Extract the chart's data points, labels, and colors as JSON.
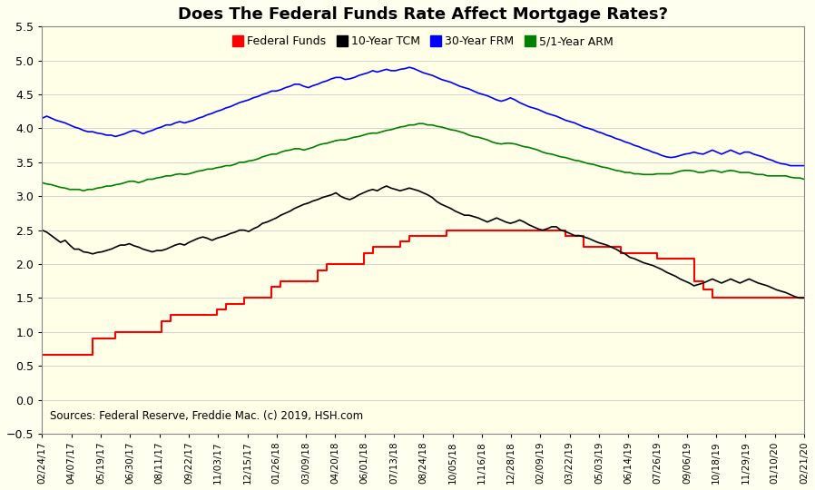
{
  "title": "Does The Federal Funds Rate Affect Mortgage Rates?",
  "background_color": "#FFFFF0",
  "plot_bg_color": "#FFFFE8",
  "source_text": "Sources: Federal Reserve, Freddie Mac. (c) 2019, HSH.com",
  "legend_labels": [
    "Federal Funds",
    "10-Year TCM",
    "30-Year FRM",
    "5/1-Year ARM"
  ],
  "legend_colors": [
    "#FF0000",
    "#000000",
    "#0000FF",
    "#008000"
  ],
  "ylim": [
    -0.5,
    5.5
  ],
  "yticks": [
    -0.5,
    0.0,
    0.5,
    1.0,
    1.5,
    2.0,
    2.5,
    3.0,
    3.5,
    4.0,
    4.5,
    5.0,
    5.5
  ],
  "x_tick_labels": [
    "02/24/17",
    "04/07/17",
    "05/19/17",
    "06/30/17",
    "08/11/17",
    "09/22/17",
    "11/03/17",
    "12/15/17",
    "01/26/18",
    "03/09/18",
    "04/20/18",
    "06/01/18",
    "07/13/18",
    "08/24/18",
    "10/05/18",
    "11/16/18",
    "12/28/18",
    "02/09/19",
    "03/22/19",
    "05/03/19",
    "06/14/19",
    "07/26/19",
    "09/06/19",
    "10/18/19",
    "11/29/19",
    "01/10/20",
    "02/21/20"
  ],
  "federal_funds": [
    0.66,
    0.66,
    0.66,
    0.66,
    0.66,
    0.66,
    0.66,
    0.66,
    0.66,
    0.66,
    0.66,
    0.91,
    0.91,
    0.91,
    0.91,
    0.91,
    1.0,
    1.0,
    1.0,
    1.0,
    1.0,
    1.0,
    1.0,
    1.0,
    1.0,
    1.0,
    1.16,
    1.16,
    1.25,
    1.25,
    1.25,
    1.25,
    1.25,
    1.25,
    1.25,
    1.25,
    1.25,
    1.25,
    1.33,
    1.33,
    1.41,
    1.41,
    1.41,
    1.41,
    1.5,
    1.5,
    1.5,
    1.5,
    1.5,
    1.5,
    1.66,
    1.66,
    1.75,
    1.75,
    1.75,
    1.75,
    1.75,
    1.75,
    1.75,
    1.75,
    1.91,
    1.91,
    2.0,
    2.0,
    2.0,
    2.0,
    2.0,
    2.0,
    2.0,
    2.0,
    2.16,
    2.16,
    2.25,
    2.25,
    2.25,
    2.25,
    2.25,
    2.25,
    2.33,
    2.33,
    2.41,
    2.41,
    2.41,
    2.41,
    2.41,
    2.41,
    2.41,
    2.41,
    2.5,
    2.5,
    2.5,
    2.5,
    2.5,
    2.5,
    2.5,
    2.5,
    2.5,
    2.5,
    2.5,
    2.5,
    2.5,
    2.5,
    2.5,
    2.5,
    2.5,
    2.5,
    2.5,
    2.5,
    2.5,
    2.5,
    2.5,
    2.5,
    2.5,
    2.5,
    2.41,
    2.41,
    2.41,
    2.41,
    2.25,
    2.25,
    2.25,
    2.25,
    2.25,
    2.25,
    2.25,
    2.25,
    2.16,
    2.16,
    2.16,
    2.16,
    2.16,
    2.16,
    2.16,
    2.16,
    2.08,
    2.08,
    2.08,
    2.08,
    2.08,
    2.08,
    2.08,
    2.08,
    1.75,
    1.75,
    1.625,
    1.625,
    1.5,
    1.5,
    1.5,
    1.5,
    1.5,
    1.5,
    1.5,
    1.5,
    1.5,
    1.5,
    1.5,
    1.5,
    1.5,
    1.5,
    1.5,
    1.5,
    1.5,
    1.5,
    1.5,
    1.5,
    1.5
  ],
  "tcm_10yr": [
    2.5,
    2.47,
    2.42,
    2.37,
    2.32,
    2.35,
    2.28,
    2.22,
    2.22,
    2.18,
    2.17,
    2.15,
    2.17,
    2.18,
    2.2,
    2.22,
    2.25,
    2.28,
    2.28,
    2.3,
    2.27,
    2.25,
    2.22,
    2.2,
    2.18,
    2.2,
    2.2,
    2.22,
    2.25,
    2.28,
    2.3,
    2.28,
    2.32,
    2.35,
    2.38,
    2.4,
    2.38,
    2.35,
    2.38,
    2.4,
    2.42,
    2.45,
    2.47,
    2.5,
    2.5,
    2.48,
    2.52,
    2.55,
    2.6,
    2.62,
    2.65,
    2.68,
    2.72,
    2.75,
    2.78,
    2.82,
    2.85,
    2.88,
    2.9,
    2.93,
    2.95,
    2.98,
    3.0,
    3.02,
    3.05,
    3.0,
    2.97,
    2.95,
    2.98,
    3.02,
    3.05,
    3.08,
    3.1,
    3.08,
    3.12,
    3.15,
    3.12,
    3.1,
    3.08,
    3.1,
    3.12,
    3.1,
    3.08,
    3.05,
    3.02,
    2.98,
    2.92,
    2.88,
    2.85,
    2.82,
    2.78,
    2.75,
    2.72,
    2.72,
    2.7,
    2.68,
    2.65,
    2.62,
    2.65,
    2.68,
    2.65,
    2.62,
    2.6,
    2.62,
    2.65,
    2.62,
    2.58,
    2.55,
    2.52,
    2.5,
    2.52,
    2.55,
    2.55,
    2.5,
    2.48,
    2.45,
    2.42,
    2.42,
    2.4,
    2.38,
    2.35,
    2.32,
    2.3,
    2.28,
    2.25,
    2.22,
    2.18,
    2.15,
    2.1,
    2.08,
    2.05,
    2.02,
    2.0,
    1.98,
    1.95,
    1.92,
    1.88,
    1.85,
    1.82,
    1.78,
    1.75,
    1.72,
    1.68,
    1.7,
    1.72,
    1.75,
    1.78,
    1.75,
    1.72,
    1.75,
    1.78,
    1.75,
    1.72,
    1.75,
    1.78,
    1.75,
    1.72,
    1.7,
    1.68,
    1.65,
    1.62,
    1.6,
    1.58,
    1.55,
    1.52,
    1.5,
    1.5
  ],
  "frm_30yr": [
    4.15,
    4.18,
    4.15,
    4.12,
    4.1,
    4.08,
    4.05,
    4.02,
    4.0,
    3.97,
    3.95,
    3.95,
    3.93,
    3.92,
    3.9,
    3.9,
    3.88,
    3.9,
    3.92,
    3.95,
    3.97,
    3.95,
    3.92,
    3.95,
    3.97,
    4.0,
    4.02,
    4.05,
    4.05,
    4.08,
    4.1,
    4.08,
    4.1,
    4.12,
    4.15,
    4.17,
    4.2,
    4.22,
    4.25,
    4.27,
    4.3,
    4.32,
    4.35,
    4.38,
    4.4,
    4.42,
    4.45,
    4.47,
    4.5,
    4.52,
    4.55,
    4.55,
    4.57,
    4.6,
    4.62,
    4.65,
    4.65,
    4.62,
    4.6,
    4.63,
    4.65,
    4.68,
    4.7,
    4.73,
    4.75,
    4.75,
    4.72,
    4.73,
    4.75,
    4.78,
    4.8,
    4.82,
    4.85,
    4.83,
    4.85,
    4.87,
    4.85,
    4.85,
    4.87,
    4.88,
    4.9,
    4.88,
    4.85,
    4.82,
    4.8,
    4.78,
    4.75,
    4.72,
    4.7,
    4.68,
    4.65,
    4.62,
    4.6,
    4.58,
    4.55,
    4.52,
    4.5,
    4.48,
    4.45,
    4.42,
    4.4,
    4.42,
    4.45,
    4.42,
    4.38,
    4.35,
    4.32,
    4.3,
    4.28,
    4.25,
    4.22,
    4.2,
    4.18,
    4.15,
    4.12,
    4.1,
    4.08,
    4.05,
    4.02,
    4.0,
    3.98,
    3.95,
    3.93,
    3.9,
    3.88,
    3.85,
    3.83,
    3.8,
    3.78,
    3.75,
    3.73,
    3.7,
    3.68,
    3.65,
    3.63,
    3.6,
    3.58,
    3.57,
    3.58,
    3.6,
    3.62,
    3.63,
    3.65,
    3.63,
    3.62,
    3.65,
    3.68,
    3.65,
    3.62,
    3.65,
    3.68,
    3.65,
    3.62,
    3.65,
    3.65,
    3.62,
    3.6,
    3.58,
    3.55,
    3.53,
    3.5,
    3.48,
    3.47,
    3.45,
    3.45,
    3.45,
    3.45
  ],
  "arm_5_1yr": [
    3.2,
    3.18,
    3.17,
    3.15,
    3.13,
    3.12,
    3.1,
    3.1,
    3.1,
    3.08,
    3.1,
    3.1,
    3.12,
    3.13,
    3.15,
    3.15,
    3.17,
    3.18,
    3.2,
    3.22,
    3.22,
    3.2,
    3.22,
    3.25,
    3.25,
    3.27,
    3.28,
    3.3,
    3.3,
    3.32,
    3.33,
    3.32,
    3.33,
    3.35,
    3.37,
    3.38,
    3.4,
    3.4,
    3.42,
    3.43,
    3.45,
    3.45,
    3.47,
    3.5,
    3.5,
    3.52,
    3.53,
    3.55,
    3.58,
    3.6,
    3.62,
    3.62,
    3.65,
    3.67,
    3.68,
    3.7,
    3.7,
    3.68,
    3.7,
    3.72,
    3.75,
    3.77,
    3.78,
    3.8,
    3.82,
    3.83,
    3.83,
    3.85,
    3.87,
    3.88,
    3.9,
    3.92,
    3.93,
    3.93,
    3.95,
    3.97,
    3.98,
    4.0,
    4.02,
    4.03,
    4.05,
    4.05,
    4.07,
    4.07,
    4.05,
    4.05,
    4.03,
    4.02,
    4.0,
    3.98,
    3.97,
    3.95,
    3.93,
    3.9,
    3.88,
    3.87,
    3.85,
    3.83,
    3.8,
    3.78,
    3.77,
    3.78,
    3.78,
    3.77,
    3.75,
    3.73,
    3.72,
    3.7,
    3.68,
    3.65,
    3.63,
    3.62,
    3.6,
    3.58,
    3.57,
    3.55,
    3.53,
    3.52,
    3.5,
    3.48,
    3.47,
    3.45,
    3.43,
    3.42,
    3.4,
    3.38,
    3.37,
    3.35,
    3.35,
    3.33,
    3.33,
    3.32,
    3.32,
    3.32,
    3.33,
    3.33,
    3.33,
    3.33,
    3.35,
    3.37,
    3.38,
    3.38,
    3.37,
    3.35,
    3.35,
    3.37,
    3.38,
    3.37,
    3.35,
    3.37,
    3.38,
    3.37,
    3.35,
    3.35,
    3.35,
    3.33,
    3.32,
    3.32,
    3.3,
    3.3,
    3.3,
    3.3,
    3.3,
    3.28,
    3.27,
    3.27,
    3.25
  ]
}
